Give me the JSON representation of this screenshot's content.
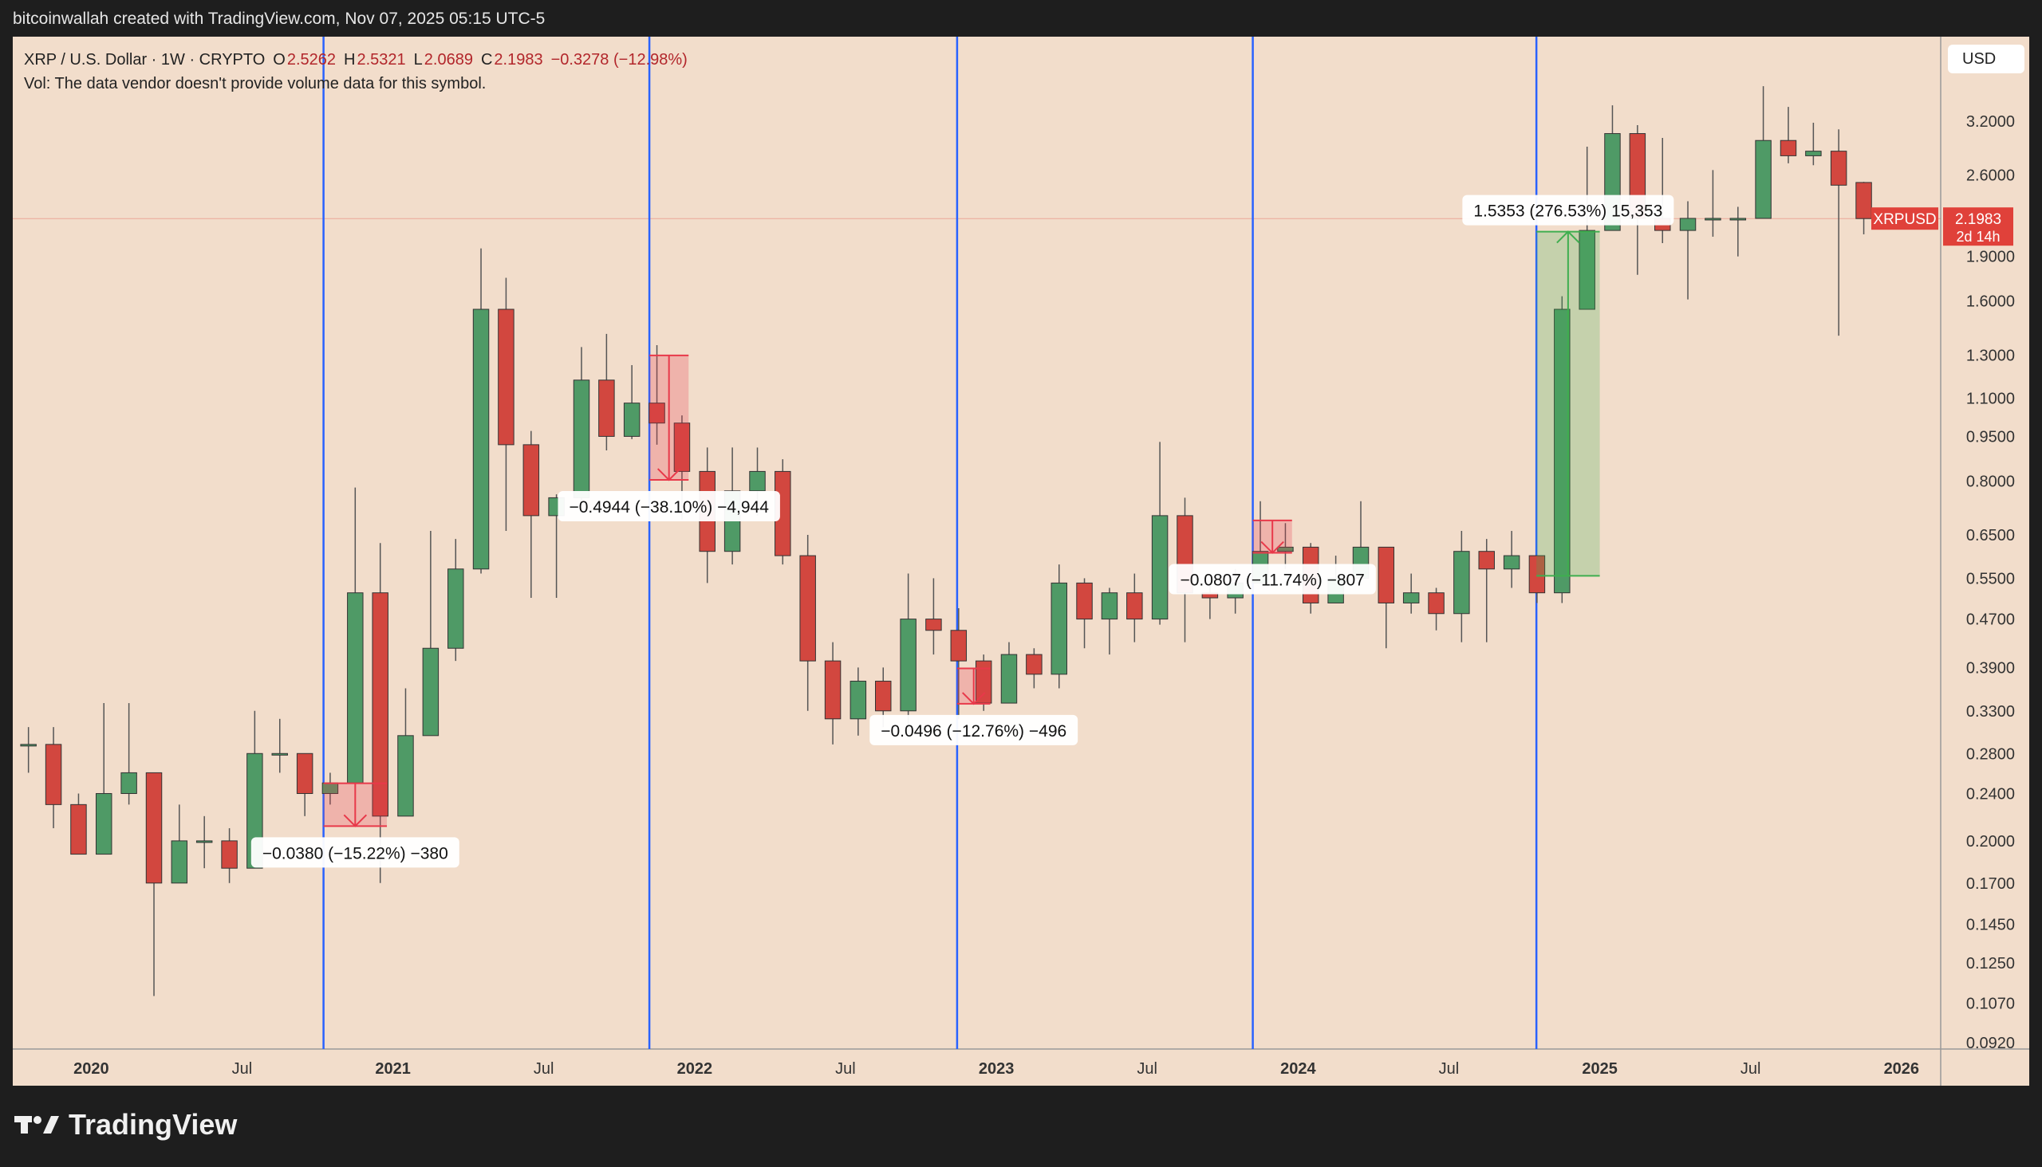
{
  "header": {
    "credit": "bitcoinwallah created with TradingView.com, Nov 07, 2025 05:15 UTC-5",
    "ohlc": [
      {
        "key": "O",
        "value": "2.5262"
      },
      {
        "key": "H",
        "value": "2.5321"
      },
      {
        "key": "L",
        "value": "2.0689"
      },
      {
        "key": "C",
        "value": "2.1983"
      }
    ],
    "change": "−0.3278 (−12.98%)",
    "volume_note": "Vol: The data vendor doesn't provide volume data for this symbol."
  },
  "footer": {
    "brand": "TradingView"
  },
  "chart_data": {
    "type": "candlestick",
    "title": "XRP / U.S. Dollar · 1W · CRYPTO",
    "currency": "USD",
    "x": [
      2019.792,
      2019.875,
      2019.958,
      2020.042,
      2020.125,
      2020.208,
      2020.292,
      2020.375,
      2020.458,
      2020.542,
      2020.625,
      2020.708,
      2020.792,
      2020.875,
      2020.958,
      2021.042,
      2021.125,
      2021.208,
      2021.292,
      2021.375,
      2021.458,
      2021.542,
      2021.625,
      2021.708,
      2021.792,
      2021.875,
      2021.958,
      2022.042,
      2022.125,
      2022.208,
      2022.292,
      2022.375,
      2022.458,
      2022.542,
      2022.625,
      2022.708,
      2022.792,
      2022.875,
      2022.958,
      2023.042,
      2023.125,
      2023.208,
      2023.292,
      2023.375,
      2023.458,
      2023.542,
      2023.625,
      2023.708,
      2023.792,
      2023.875,
      2023.958,
      2024.042,
      2024.125,
      2024.208,
      2024.292,
      2024.375,
      2024.458,
      2024.542,
      2024.625,
      2024.708,
      2024.792,
      2024.875,
      2024.958,
      2025.042,
      2025.125,
      2025.208,
      2025.292,
      2025.375,
      2025.458,
      2025.542,
      2025.625,
      2025.708,
      2025.792,
      2025.875
    ],
    "open": [
      0.29,
      0.29,
      0.23,
      0.19,
      0.24,
      0.26,
      0.17,
      0.2,
      0.2,
      0.18,
      0.28,
      0.28,
      0.24,
      0.25,
      0.52,
      0.22,
      0.3,
      0.42,
      0.57,
      1.55,
      0.92,
      0.7,
      0.75,
      1.18,
      0.95,
      1.08,
      1.0,
      0.83,
      0.61,
      0.77,
      0.83,
      0.6,
      0.4,
      0.32,
      0.37,
      0.33,
      0.47,
      0.45,
      0.4,
      0.34,
      0.41,
      0.38,
      0.54,
      0.47,
      0.52,
      0.47,
      0.7,
      0.52,
      0.51,
      0.54,
      0.61,
      0.62,
      0.5,
      0.55,
      0.62,
      0.5,
      0.52,
      0.48,
      0.61,
      0.57,
      0.6,
      0.52,
      1.55,
      2.1,
      3.05,
      2.2,
      2.1,
      2.2,
      2.2,
      2.2,
      2.97,
      2.8,
      2.85,
      2.5262
    ],
    "high": [
      0.31,
      0.31,
      0.24,
      0.34,
      0.34,
      0.26,
      0.23,
      0.22,
      0.21,
      0.33,
      0.32,
      0.28,
      0.26,
      0.78,
      0.63,
      0.36,
      0.66,
      0.64,
      1.96,
      1.75,
      0.97,
      0.76,
      1.34,
      1.41,
      1.25,
      1.35,
      1.03,
      0.91,
      0.91,
      0.91,
      0.87,
      0.65,
      0.43,
      0.39,
      0.39,
      0.56,
      0.55,
      0.49,
      0.41,
      0.43,
      0.42,
      0.58,
      0.55,
      0.53,
      0.56,
      0.93,
      0.75,
      0.54,
      0.57,
      0.74,
      0.68,
      0.63,
      0.6,
      0.74,
      0.62,
      0.56,
      0.53,
      0.66,
      0.64,
      0.66,
      0.6,
      1.63,
      2.9,
      3.4,
      3.15,
      3.0,
      2.35,
      2.65,
      2.3,
      3.66,
      3.38,
      3.18,
      3.1,
      2.5321
    ],
    "low": [
      0.26,
      0.21,
      0.19,
      0.19,
      0.23,
      0.11,
      0.17,
      0.18,
      0.17,
      0.18,
      0.26,
      0.22,
      0.23,
      0.24,
      0.17,
      0.22,
      0.3,
      0.4,
      0.56,
      0.66,
      0.51,
      0.51,
      0.74,
      0.9,
      0.94,
      0.92,
      0.69,
      0.54,
      0.58,
      0.7,
      0.58,
      0.33,
      0.29,
      0.3,
      0.31,
      0.31,
      0.41,
      0.32,
      0.33,
      0.34,
      0.36,
      0.36,
      0.42,
      0.41,
      0.43,
      0.46,
      0.43,
      0.47,
      0.48,
      0.54,
      0.57,
      0.48,
      0.5,
      0.54,
      0.42,
      0.48,
      0.45,
      0.43,
      0.43,
      0.53,
      0.5,
      0.5,
      1.55,
      2.1,
      1.77,
      2.0,
      1.61,
      2.05,
      1.9,
      2.2,
      2.72,
      2.7,
      1.4,
      2.0689
    ],
    "close": [
      0.29,
      0.23,
      0.19,
      0.24,
      0.26,
      0.17,
      0.2,
      0.2,
      0.18,
      0.28,
      0.28,
      0.24,
      0.25,
      0.52,
      0.22,
      0.3,
      0.42,
      0.57,
      1.55,
      0.92,
      0.7,
      0.75,
      1.18,
      0.95,
      1.08,
      1.0,
      0.83,
      0.61,
      0.77,
      0.83,
      0.6,
      0.4,
      0.32,
      0.37,
      0.33,
      0.47,
      0.45,
      0.4,
      0.34,
      0.41,
      0.38,
      0.54,
      0.47,
      0.52,
      0.47,
      0.7,
      0.52,
      0.51,
      0.54,
      0.61,
      0.62,
      0.5,
      0.55,
      0.62,
      0.5,
      0.52,
      0.48,
      0.61,
      0.57,
      0.6,
      0.52,
      1.55,
      2.1,
      3.05,
      2.2,
      2.1,
      2.2,
      2.2,
      2.2,
      2.97,
      2.8,
      2.85,
      2.5,
      2.1983
    ],
    "up_color": "#4f9a66",
    "down_color": "#d2473f",
    "log_scale": true,
    "grid": false,
    "xlim": [
      2019.74,
      2026.13
    ],
    "xticks": [
      2020,
      {
        "value": 2020.5,
        "label": "Jul"
      },
      2021,
      {
        "value": 2021.5,
        "label": "Jul"
      },
      2022,
      {
        "value": 2022.5,
        "label": "Jul"
      },
      2023,
      {
        "value": 2023.5,
        "label": "Jul"
      },
      2024,
      {
        "value": 2024.5,
        "label": "Jul"
      },
      2025,
      {
        "value": 2025.5,
        "label": "Jul"
      },
      2026
    ],
    "ylim": [
      0.0897,
      4.43
    ],
    "yticks": [
      {
        "value": 0.092,
        "label": "0.0920"
      },
      {
        "value": 0.107,
        "label": "0.1070"
      },
      {
        "value": 0.125,
        "label": "0.1250"
      },
      {
        "value": 0.145,
        "label": "0.1450"
      },
      {
        "value": 0.17,
        "label": "0.1700"
      },
      {
        "value": 0.2,
        "label": "0.2000"
      },
      {
        "value": 0.24,
        "label": "0.2400"
      },
      {
        "value": 0.28,
        "label": "0.2800"
      },
      {
        "value": 0.33,
        "label": "0.3300"
      },
      {
        "value": 0.39,
        "label": "0.3900"
      },
      {
        "value": 0.47,
        "label": "0.4700"
      },
      {
        "value": 0.55,
        "label": "0.5500"
      },
      {
        "value": 0.65,
        "label": "0.6500"
      },
      {
        "value": 0.8,
        "label": "0.8000"
      },
      {
        "value": 0.95,
        "label": "0.9500"
      },
      {
        "value": 1.1,
        "label": "1.1000"
      },
      {
        "value": 1.3,
        "label": "1.3000"
      },
      {
        "value": 1.6,
        "label": "1.6000"
      },
      {
        "value": 1.9,
        "label": "1.9000"
      },
      {
        "value": 2.6,
        "label": "2.6000"
      },
      {
        "value": 3.2,
        "label": "3.2000"
      }
    ],
    "vertical_lines": {
      "color": "#2962ff",
      "x": [
        2020.77,
        2021.85,
        2022.87,
        2023.85,
        2024.79
      ]
    },
    "measures": [
      {
        "label": "−0.0380 (−15.22%) −380",
        "x0": 2020.77,
        "x1": 2020.98,
        "from": 0.2497,
        "to": 0.2117,
        "color": "#e8394a"
      },
      {
        "label": "−0.4944 (−38.10%) −4,944",
        "x0": 2021.85,
        "x1": 2021.98,
        "from": 1.2977,
        "to": 0.8033,
        "color": "#e8394a"
      },
      {
        "label": "−0.0496 (−12.76%) −496",
        "x0": 2022.87,
        "x1": 2022.98,
        "from": 0.3887,
        "to": 0.3391,
        "color": "#e8394a"
      },
      {
        "label": "−0.0807 (−11.74%) −807",
        "x0": 2023.85,
        "x1": 2023.98,
        "from": 0.6873,
        "to": 0.6066,
        "color": "#e8394a"
      },
      {
        "label": "1.5353 (276.53%) 15,353",
        "x0": 2024.79,
        "x1": 2025.0,
        "from": 0.5552,
        "to": 2.0905,
        "color": "#3fae4f"
      }
    ],
    "last_price": {
      "symbol": "XRPUSD",
      "value": 2.1983,
      "countdown": "2d 14h",
      "color": "#e0413a"
    }
  }
}
